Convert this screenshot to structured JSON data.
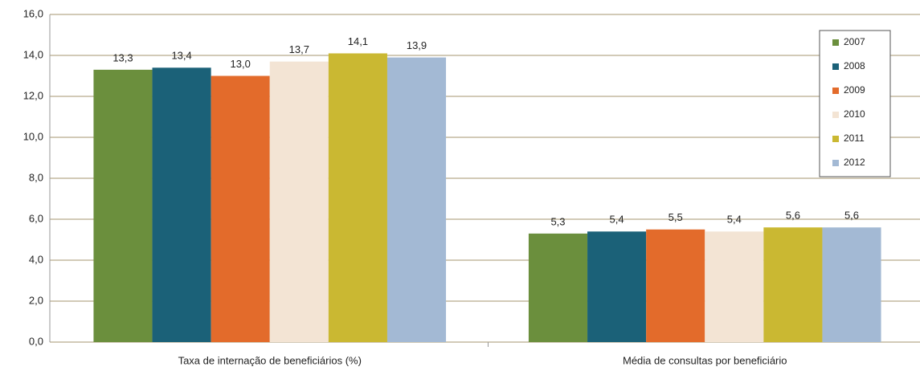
{
  "chart_data": {
    "type": "bar",
    "categories": [
      "Taxa de internação de beneficiários (%)",
      "Média de consultas por beneficiário"
    ],
    "series": [
      {
        "name": "2007",
        "color": "#6b8f3d",
        "values": [
          13.3,
          5.3
        ],
        "value_labels": [
          "13,3",
          "5,3"
        ]
      },
      {
        "name": "2008",
        "color": "#1b6178",
        "values": [
          13.4,
          5.4
        ],
        "value_labels": [
          "13,4",
          "5,4"
        ]
      },
      {
        "name": "2009",
        "color": "#e36b2b",
        "values": [
          13.0,
          5.5
        ],
        "value_labels": [
          "13,0",
          "5,5"
        ]
      },
      {
        "name": "2010",
        "color": "#f3e4d4",
        "values": [
          13.7,
          5.4
        ],
        "value_labels": [
          "13,7",
          "5,4"
        ]
      },
      {
        "name": "2011",
        "color": "#cab832",
        "values": [
          14.1,
          5.6
        ],
        "value_labels": [
          "14,1",
          "5,6"
        ]
      },
      {
        "name": "2012",
        "color": "#a3b9d4",
        "values": [
          13.9,
          5.6
        ],
        "value_labels": [
          "13,9",
          "5,6"
        ]
      }
    ],
    "ylim": [
      0,
      16
    ],
    "yticks": [
      {
        "value": 0,
        "label": "0,0"
      },
      {
        "value": 2,
        "label": "2,0"
      },
      {
        "value": 4,
        "label": "4,0"
      },
      {
        "value": 6,
        "label": "6,0"
      },
      {
        "value": 8,
        "label": "8,0"
      },
      {
        "value": 10,
        "label": "10,0"
      },
      {
        "value": 12,
        "label": "12,0"
      },
      {
        "value": 14,
        "label": "14,0"
      },
      {
        "value": 16,
        "label": "16,0"
      }
    ],
    "grid": true,
    "legend": "right"
  }
}
